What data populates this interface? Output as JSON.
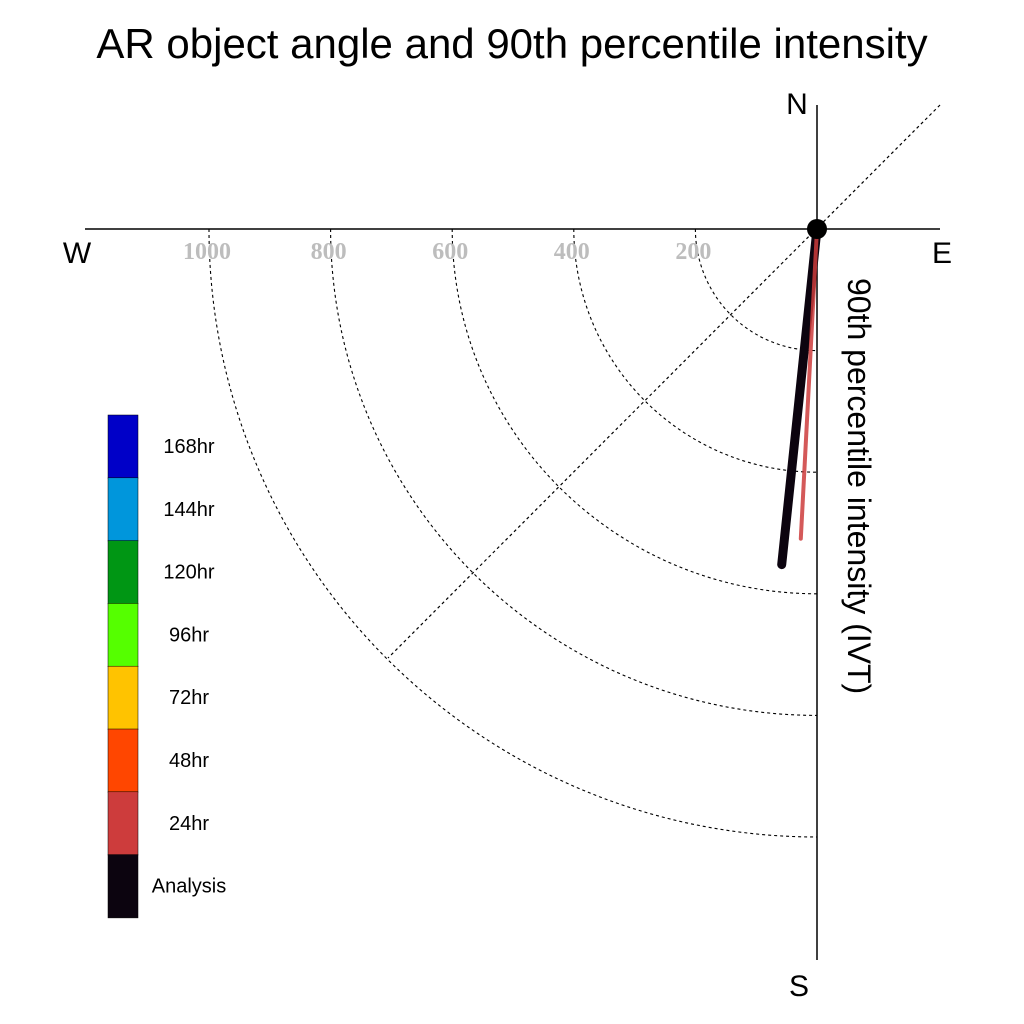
{
  "chart_data": {
    "type": "polar-vector",
    "title": "AR object angle and 90th percentile intensity",
    "ylabel": "90th percentile intensity (IVT)",
    "compass": {
      "north": "N",
      "south": "S",
      "east": "E",
      "west": "W"
    },
    "radial_ticks": [
      "200",
      "400",
      "600",
      "800",
      "1000"
    ],
    "radial_values": [
      200,
      400,
      600,
      800,
      1000
    ],
    "radial_max": 1000,
    "legend": [
      {
        "label": "168hr",
        "color": "#0000c8"
      },
      {
        "label": "144hr",
        "color": "#0096dc"
      },
      {
        "label": "120hr",
        "color": "#009614"
      },
      {
        "label": "96hr",
        "color": "#55ff00"
      },
      {
        "label": "72hr",
        "color": "#ffc300"
      },
      {
        "label": "48hr",
        "color": "#ff4600"
      },
      {
        "label": "24hr",
        "color": "#cd3c3c"
      },
      {
        "label": "Analysis",
        "color": "#0c040f"
      }
    ],
    "series": [
      {
        "name": "Analysis",
        "color": "#0c040f",
        "angle_deg": 186,
        "intensity": 555
      },
      {
        "name": "24hr",
        "color": "#cd3c3c",
        "angle_deg": 183,
        "intensity": 510
      }
    ]
  }
}
